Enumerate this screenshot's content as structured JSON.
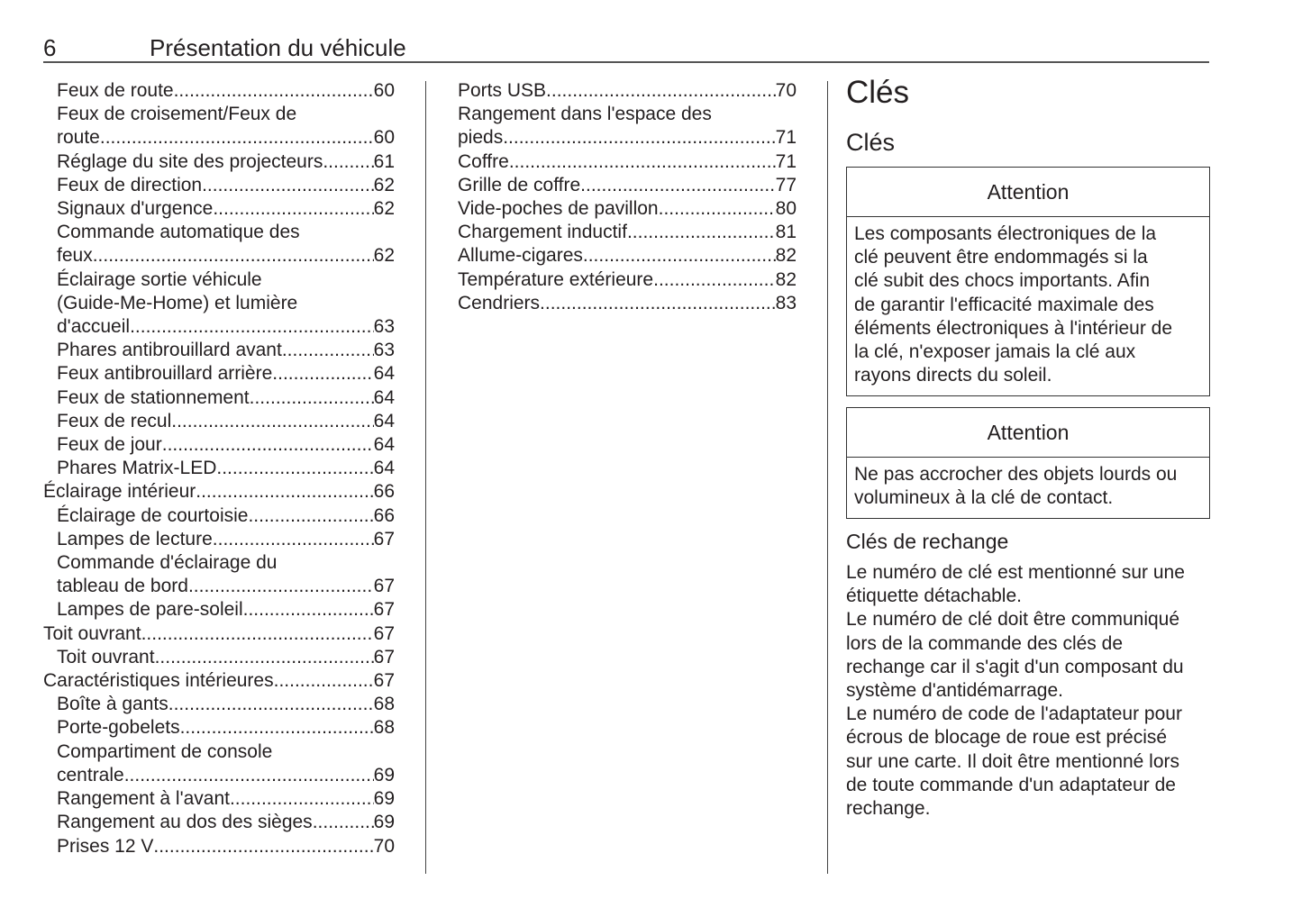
{
  "header": {
    "page_number": "6",
    "title": "Présentation du véhicule"
  },
  "toc_col1": [
    {
      "level": 1,
      "lines": [
        "Feux de route"
      ],
      "page": "60"
    },
    {
      "level": 1,
      "lines": [
        "Feux de croisement/Feux de",
        "route"
      ],
      "page": "60"
    },
    {
      "level": 1,
      "lines": [
        "Réglage du site des projecteurs"
      ],
      "page": "61"
    },
    {
      "level": 1,
      "lines": [
        "Feux de direction"
      ],
      "page": "62"
    },
    {
      "level": 1,
      "lines": [
        "Signaux d'urgence"
      ],
      "page": "62"
    },
    {
      "level": 1,
      "lines": [
        "Commande automatique des",
        "feux"
      ],
      "page": "62"
    },
    {
      "level": 1,
      "lines": [
        "Éclairage sortie véhicule",
        "(Guide-Me-Home) et lumière",
        "d'accueil"
      ],
      "page": "63"
    },
    {
      "level": 1,
      "lines": [
        "Phares antibrouillard avant"
      ],
      "page": "63"
    },
    {
      "level": 1,
      "lines": [
        "Feux antibrouillard arrière"
      ],
      "page": "64"
    },
    {
      "level": 1,
      "lines": [
        "Feux de stationnement"
      ],
      "page": "64"
    },
    {
      "level": 1,
      "lines": [
        "Feux de recul"
      ],
      "page": "64"
    },
    {
      "level": 1,
      "lines": [
        "Feux de jour"
      ],
      "page": "64"
    },
    {
      "level": 1,
      "lines": [
        "Phares Matrix-LED"
      ],
      "page": "64"
    },
    {
      "level": 0,
      "lines": [
        "Éclairage intérieur"
      ],
      "page": "66"
    },
    {
      "level": 1,
      "lines": [
        "Éclairage de courtoisie"
      ],
      "page": "66"
    },
    {
      "level": 1,
      "lines": [
        "Lampes de lecture"
      ],
      "page": "67"
    },
    {
      "level": 1,
      "lines": [
        "Commande d'éclairage du",
        "tableau de bord"
      ],
      "page": "67"
    },
    {
      "level": 1,
      "lines": [
        "Lampes de pare-soleil"
      ],
      "page": "67"
    },
    {
      "level": 0,
      "lines": [
        "Toit ouvrant"
      ],
      "page": "67"
    },
    {
      "level": 1,
      "lines": [
        "Toit ouvrant"
      ],
      "page": "67"
    },
    {
      "level": 0,
      "lines": [
        "Caractéristiques intérieures"
      ],
      "page": "67"
    },
    {
      "level": 1,
      "lines": [
        "Boîte à gants"
      ],
      "page": "68"
    },
    {
      "level": 1,
      "lines": [
        "Porte-gobelets"
      ],
      "page": "68"
    },
    {
      "level": 1,
      "lines": [
        "Compartiment de console",
        "centrale"
      ],
      "page": "69"
    },
    {
      "level": 1,
      "lines": [
        "Rangement à l'avant"
      ],
      "page": "69"
    },
    {
      "level": 1,
      "lines": [
        "Rangement au dos des sièges"
      ],
      "page": "69"
    },
    {
      "level": 1,
      "lines": [
        "Prises 12 V"
      ],
      "page": "70"
    }
  ],
  "toc_col2": [
    {
      "level": 0,
      "lines": [
        "Ports USB"
      ],
      "page": "70"
    },
    {
      "level": 0,
      "lines": [
        "Rangement dans l'espace des",
        "pieds"
      ],
      "page": "71"
    },
    {
      "level": 0,
      "lines": [
        "Coffre"
      ],
      "page": "71"
    },
    {
      "level": 0,
      "lines": [
        "Grille de coffre"
      ],
      "page": "77"
    },
    {
      "level": 0,
      "lines": [
        "Vide-poches de pavillon"
      ],
      "page": "80"
    },
    {
      "level": 0,
      "lines": [
        "Chargement inductif"
      ],
      "page": "81"
    },
    {
      "level": 0,
      "lines": [
        "Allume-cigares"
      ],
      "page": "82"
    },
    {
      "level": 0,
      "lines": [
        "Température extérieure"
      ],
      "page": "82"
    },
    {
      "level": 0,
      "lines": [
        "Cendriers"
      ],
      "page": "83"
    }
  ],
  "right": {
    "title": "Clés",
    "subtitle": "Clés",
    "attention1": {
      "heading": "Attention",
      "lines": [
        "Les composants électroniques de la",
        "clé peuvent être endommagés si la",
        "clé subit des chocs importants. Afin",
        "de garantir l'efficacité maximale des",
        "éléments électroniques à l'intérieur de",
        "la clé, n'exposer jamais la clé aux",
        "rayons directs du soleil."
      ]
    },
    "attention2": {
      "heading": "Attention",
      "lines": [
        "Ne pas accrocher des objets lourds ou",
        "volumineux à la clé de contact."
      ]
    },
    "section_heading": "Clés de rechange",
    "paragraph_lines": [
      "Le numéro de clé est mentionné sur une",
      "étiquette détachable.",
      "Le numéro de clé doit être communiqué",
      "lors de la commande des clés de",
      "rechange car il s'agit d'un composant du",
      "système d'antidémarrage.",
      "Le numéro de code de l'adaptateur pour",
      "écrous de blocage de roue est précisé",
      "sur une carte. Il doit être mentionné lors",
      "de toute commande d'un adaptateur de",
      "rechange."
    ]
  }
}
